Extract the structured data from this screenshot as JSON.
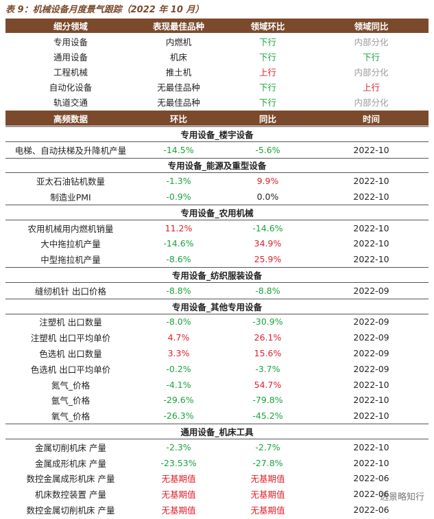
{
  "title": "表 9：机械设备月度景气跟踪（2022 年 10 月）",
  "summary_table": {
    "columns": [
      "细分领域",
      "表现最佳品种",
      "领域环比",
      "领域同比"
    ],
    "rows": [
      {
        "cells": [
          "专用设备",
          "内燃机",
          "下行",
          "内部分化"
        ],
        "colors": [
          "#222222",
          "#222222",
          "#1aa33a",
          "#9a9a9a"
        ]
      },
      {
        "cells": [
          "通用设备",
          "机床",
          "下行",
          "下行"
        ],
        "colors": [
          "#222222",
          "#222222",
          "#1aa33a",
          "#1aa33a"
        ]
      },
      {
        "cells": [
          "工程机械",
          "推土机",
          "上行",
          "内部分化"
        ],
        "colors": [
          "#222222",
          "#222222",
          "#e0202a",
          "#9a9a9a"
        ]
      },
      {
        "cells": [
          "自动化设备",
          "无最佳品种",
          "下行",
          "上行"
        ],
        "colors": [
          "#222222",
          "#222222",
          "#1aa33a",
          "#e0202a"
        ]
      },
      {
        "cells": [
          "轨道交通",
          "无最佳品种",
          "下行",
          "内部分化"
        ],
        "colors": [
          "#222222",
          "#222222",
          "#1aa33a",
          "#9a9a9a"
        ]
      }
    ]
  },
  "detail_table": {
    "columns": [
      "高频数据",
      "环比",
      "同比",
      "时间"
    ],
    "sections": [
      {
        "title": "专用设备_楼宇设备",
        "rows": [
          {
            "cells": [
              "电梯、自动扶梯及升降机产量",
              "-14.5%",
              "-5.6%",
              "2022-10"
            ],
            "colors": [
              "#222222",
              "#1aa33a",
              "#1aa33a",
              "#222222"
            ]
          }
        ]
      },
      {
        "title": "专用设备_能源及重型设备",
        "rows": [
          {
            "cells": [
              "亚太石油钻机数量",
              "-1.3%",
              "9.9%",
              "2022-10"
            ],
            "colors": [
              "#222222",
              "#1aa33a",
              "#e0202a",
              "#222222"
            ]
          },
          {
            "cells": [
              "制造业PMI",
              "-0.9%",
              "0.0%",
              "2022-10"
            ],
            "colors": [
              "#222222",
              "#1aa33a",
              "#222222",
              "#222222"
            ]
          }
        ]
      },
      {
        "title": "专用设备_农用机械",
        "rows": [
          {
            "cells": [
              "农用机械用内燃机销量",
              "11.2%",
              "-14.6%",
              "2022-10"
            ],
            "colors": [
              "#222222",
              "#e0202a",
              "#1aa33a",
              "#222222"
            ]
          },
          {
            "cells": [
              "大中拖拉机产量",
              "-14.6%",
              "34.9%",
              "2022-10"
            ],
            "colors": [
              "#222222",
              "#1aa33a",
              "#e0202a",
              "#222222"
            ]
          },
          {
            "cells": [
              "中型拖拉机产量",
              "-8.6%",
              "25.9%",
              "2022-10"
            ],
            "colors": [
              "#222222",
              "#1aa33a",
              "#e0202a",
              "#222222"
            ]
          }
        ]
      },
      {
        "title": "专用设备_纺织服装设备",
        "rows": [
          {
            "cells": [
              "缝纫机针 出口价格",
              "-8.8%",
              "-8.8%",
              "2022-09"
            ],
            "colors": [
              "#222222",
              "#1aa33a",
              "#1aa33a",
              "#222222"
            ]
          }
        ]
      },
      {
        "title": "专用设备_其他专用设备",
        "rows": [
          {
            "cells": [
              "注塑机 出口数量",
              "-8.0%",
              "-30.9%",
              "2022-09"
            ],
            "colors": [
              "#222222",
              "#1aa33a",
              "#1aa33a",
              "#222222"
            ]
          },
          {
            "cells": [
              "注塑机 出口平均单价",
              "4.7%",
              "26.1%",
              "2022-09"
            ],
            "colors": [
              "#222222",
              "#e0202a",
              "#e0202a",
              "#222222"
            ]
          },
          {
            "cells": [
              "色选机 出口数量",
              "3.3%",
              "15.6%",
              "2022-09"
            ],
            "colors": [
              "#222222",
              "#e0202a",
              "#e0202a",
              "#222222"
            ]
          },
          {
            "cells": [
              "色选机 出口平均单价",
              "-0.2%",
              "-3.7%",
              "2022-09"
            ],
            "colors": [
              "#222222",
              "#1aa33a",
              "#1aa33a",
              "#222222"
            ]
          },
          {
            "cells": [
              "氮气_价格",
              "-4.1%",
              "54.7%",
              "2022-10"
            ],
            "colors": [
              "#222222",
              "#1aa33a",
              "#e0202a",
              "#222222"
            ]
          },
          {
            "cells": [
              "氩气_价格",
              "-29.6%",
              "-79.8%",
              "2022-10"
            ],
            "colors": [
              "#222222",
              "#1aa33a",
              "#1aa33a",
              "#222222"
            ]
          },
          {
            "cells": [
              "氧气_价格",
              "-26.3%",
              "-45.2%",
              "2022-10"
            ],
            "colors": [
              "#222222",
              "#1aa33a",
              "#1aa33a",
              "#222222"
            ]
          }
        ]
      },
      {
        "title": "通用设备_机床工具",
        "rows": [
          {
            "cells": [
              "金属切削机床 产量",
              "-2.3%",
              "-2.7%",
              "2022-10"
            ],
            "colors": [
              "#222222",
              "#1aa33a",
              "#1aa33a",
              "#222222"
            ]
          },
          {
            "cells": [
              "金属成形机床 产量",
              "-23.53%",
              "-27.8%",
              "2022-10"
            ],
            "colors": [
              "#222222",
              "#1aa33a",
              "#1aa33a",
              "#222222"
            ]
          },
          {
            "cells": [
              "数控金属成形机床 产量",
              "无基期值",
              "无基期值",
              "2022-06"
            ],
            "colors": [
              "#222222",
              "#e0202a",
              "#e0202a",
              "#222222"
            ]
          },
          {
            "cells": [
              "机床数控装置 产量",
              "无基期值",
              "无基期值",
              "2022-06"
            ],
            "colors": [
              "#222222",
              "#e0202a",
              "#e0202a",
              "#222222"
            ]
          },
          {
            "cells": [
              "数控金属切削机床 产量",
              "无基期值",
              "无基期值",
              "2022-06"
            ],
            "colors": [
              "#222222",
              "#e0202a",
              "#e0202a",
              "#222222"
            ]
          }
        ]
      }
    ]
  },
  "watermark": "远景略知行"
}
